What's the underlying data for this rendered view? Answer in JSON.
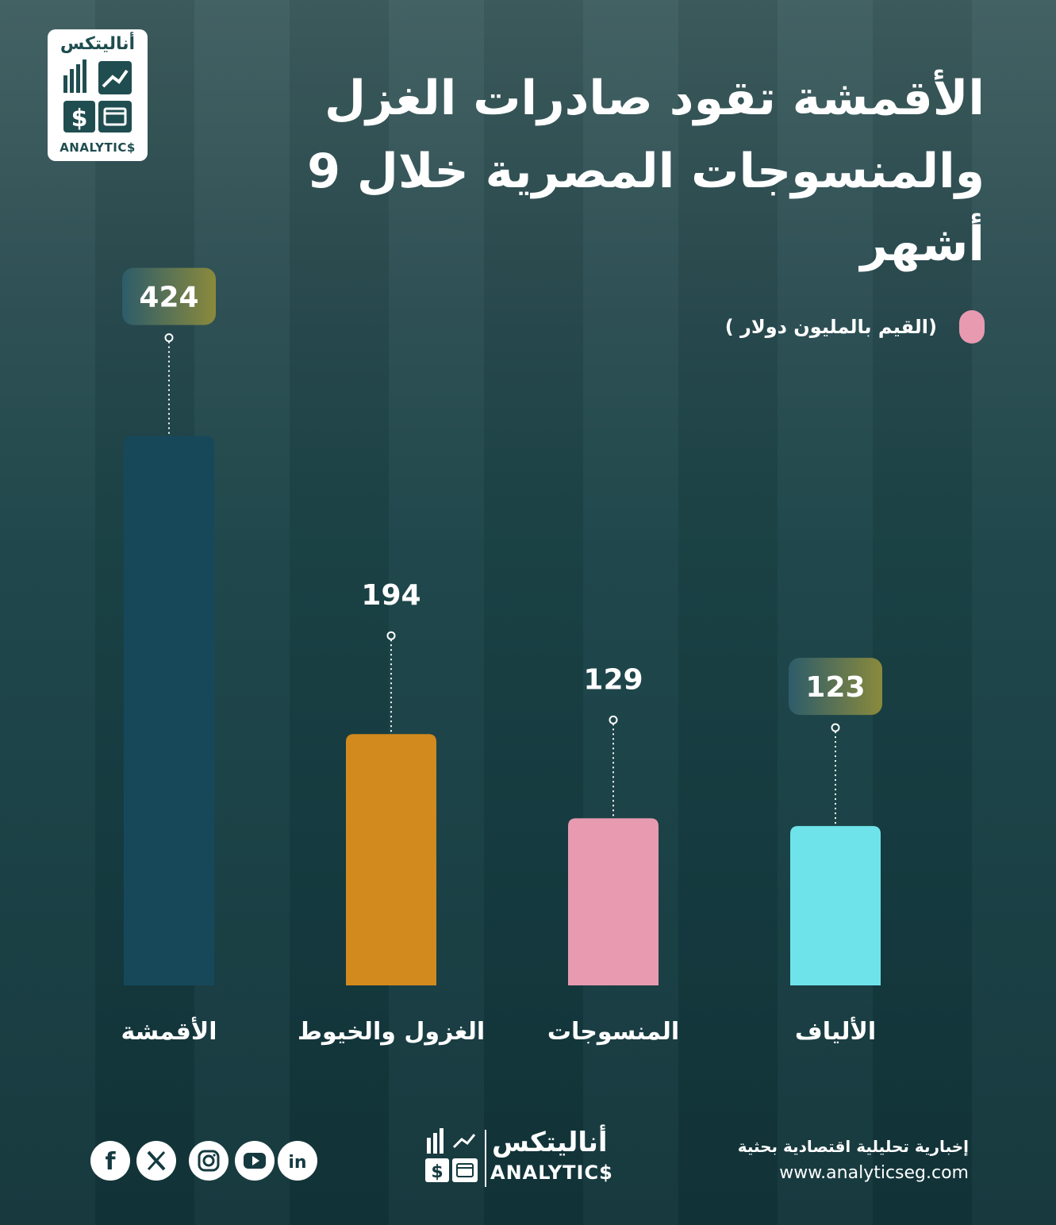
{
  "brand": {
    "logo_ar": "أناليتكس",
    "logo_en": "ANALYTIC$",
    "tagline": "إخبارية تحليلية اقتصادية بحثية",
    "url": "www.analyticseg.com"
  },
  "header": {
    "title_line1": "الأقمشة تقود صادرات الغزل",
    "title_line2": "والمنسوجات المصرية خلال 9 أشهر"
  },
  "legend": {
    "label": "(القيم بالمليون دولار )",
    "color": "#e89ab0"
  },
  "chart_data": {
    "type": "bar",
    "title": "الأقمشة تقود صادرات الغزل والمنسوجات المصرية خلال 9 أشهر",
    "ylabel": "القيم بالمليون دولار",
    "categories": [
      "الأقمشة",
      "الغزول والخيوط",
      "المنسوجات",
      "الألياف"
    ],
    "values": [
      424,
      194,
      129,
      123
    ],
    "colors": [
      "#17485a",
      "#d28a1e",
      "#e89ab0",
      "#6ee4ea"
    ],
    "highlighted": [
      true,
      false,
      false,
      true
    ],
    "grid": false,
    "legend_position": "top-right"
  },
  "social": [
    "facebook-icon",
    "x-icon",
    "instagram-icon",
    "youtube-icon",
    "linkedin-icon"
  ]
}
